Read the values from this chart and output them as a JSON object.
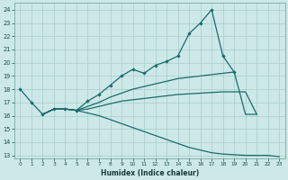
{
  "xlabel": "Humidex (Indice chaleur)",
  "bg_color": "#cde8e8",
  "grid_color": "#a8cccc",
  "line_color": "#1a6b6b",
  "xlim": [
    -0.5,
    23.5
  ],
  "ylim": [
    12.8,
    24.5
  ],
  "yticks": [
    13,
    14,
    15,
    16,
    17,
    18,
    19,
    20,
    21,
    22,
    23,
    24
  ],
  "xticks": [
    0,
    1,
    2,
    3,
    4,
    5,
    6,
    7,
    8,
    9,
    10,
    11,
    12,
    13,
    14,
    15,
    16,
    17,
    18,
    19,
    20,
    21,
    22,
    23
  ],
  "lines": [
    {
      "x": [
        0,
        1,
        2,
        3,
        4,
        5,
        6,
        7,
        8,
        9,
        10,
        11,
        12,
        13,
        14,
        15,
        16,
        17,
        18,
        19
      ],
      "y": [
        18,
        17,
        16.1,
        16.5,
        16.5,
        16.4,
        17.1,
        17.6,
        18.3,
        19.0,
        19.5,
        19.2,
        19.8,
        20.1,
        20.5,
        22.2,
        23.0,
        24.0,
        20.5,
        19.3
      ],
      "marker": true
    },
    {
      "x": [
        2,
        3,
        4,
        5,
        6,
        7,
        8,
        9,
        10,
        11,
        12,
        13,
        14,
        15,
        16,
        17,
        18,
        19,
        20,
        21,
        22,
        23
      ],
      "y": [
        16.1,
        16.5,
        16.5,
        16.4,
        16.2,
        16.0,
        15.7,
        15.4,
        15.1,
        14.8,
        14.5,
        14.2,
        13.9,
        13.6,
        13.4,
        13.2,
        13.1,
        13.05,
        13.0,
        13.0,
        13.0,
        12.9
      ],
      "marker": false
    },
    {
      "x": [
        2,
        3,
        4,
        5,
        6,
        7,
        8,
        9,
        10,
        11,
        12,
        13,
        14,
        15,
        16,
        17,
        18,
        19,
        20,
        21
      ],
      "y": [
        16.1,
        16.5,
        16.5,
        16.4,
        16.5,
        16.7,
        16.9,
        17.1,
        17.2,
        17.3,
        17.4,
        17.5,
        17.6,
        17.65,
        17.7,
        17.75,
        17.8,
        17.8,
        17.8,
        16.1
      ],
      "marker": false
    },
    {
      "x": [
        2,
        3,
        4,
        5,
        6,
        7,
        8,
        9,
        10,
        11,
        12,
        13,
        14,
        15,
        16,
        17,
        18,
        19,
        20,
        21
      ],
      "y": [
        16.1,
        16.5,
        16.5,
        16.4,
        16.7,
        17.0,
        17.4,
        17.7,
        18.0,
        18.2,
        18.4,
        18.6,
        18.8,
        18.9,
        19.0,
        19.1,
        19.2,
        19.3,
        16.1,
        16.1
      ],
      "marker": false
    }
  ]
}
